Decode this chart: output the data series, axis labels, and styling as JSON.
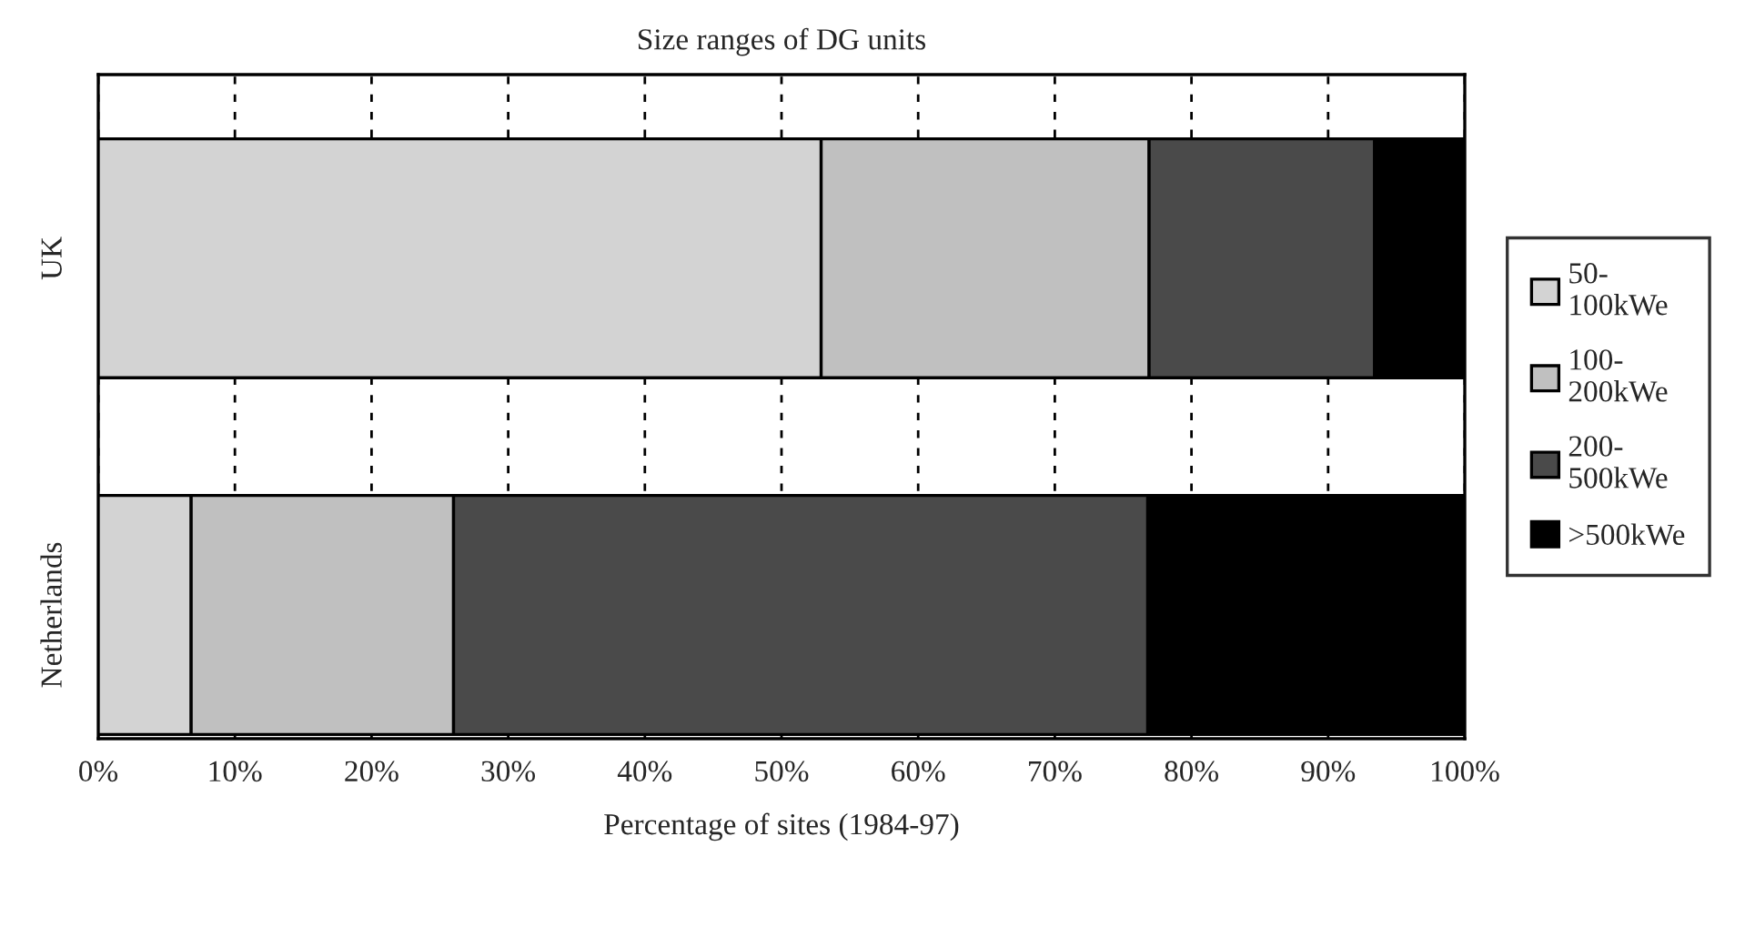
{
  "chart_data": {
    "type": "bar",
    "orientation": "horizontal",
    "stacked": true,
    "title": "Size ranges of DG units",
    "xlabel": "Percentage of sites (1984-97)",
    "categories": [
      "UK",
      "Netherlands"
    ],
    "series": [
      {
        "name": "50-100kWe",
        "color": "#d3d3d3",
        "values": [
          52.9,
          6.8
        ]
      },
      {
        "name": "100-200kWe",
        "color": "#c0c0c0",
        "values": [
          24.0,
          19.2
        ]
      },
      {
        "name": "200-500kWe",
        "color": "#4a4a4a",
        "values": [
          16.5,
          50.8
        ]
      },
      {
        "name": ">500kWe",
        "color": "#000000",
        "values": [
          6.6,
          23.2
        ]
      }
    ],
    "xlim": [
      0,
      100
    ],
    "xticks": [
      {
        "value": 0,
        "label": "0%"
      },
      {
        "value": 10,
        "label": "10%"
      },
      {
        "value": 20,
        "label": "20%"
      },
      {
        "value": 30,
        "label": "30%"
      },
      {
        "value": 40,
        "label": "40%"
      },
      {
        "value": 50,
        "label": "50%"
      },
      {
        "value": 60,
        "label": "60%"
      },
      {
        "value": 70,
        "label": "70%"
      },
      {
        "value": 80,
        "label": "80%"
      },
      {
        "value": 90,
        "label": "90%"
      },
      {
        "value": 100,
        "label": "100%"
      }
    ],
    "grid": "x",
    "legend": "right",
    "line_style": "dashed"
  }
}
